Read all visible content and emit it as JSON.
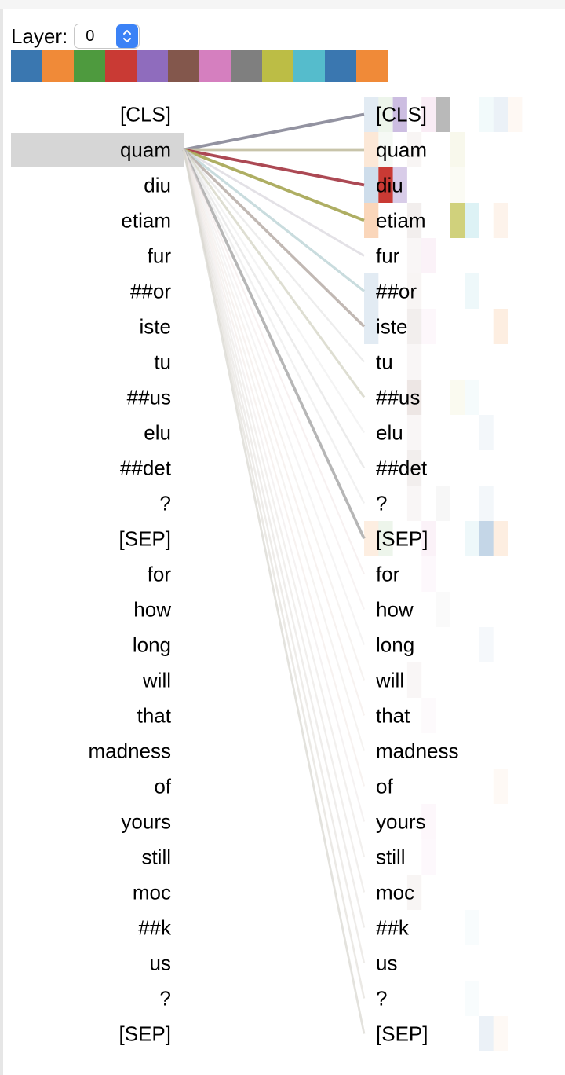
{
  "controls": {
    "layer_label": "Layer:",
    "layer_value": "0",
    "dropdown_icon": "up-down-chevron-icon"
  },
  "head_colors": [
    "#3a77b0",
    "#f08a38",
    "#4e9a3e",
    "#c93a34",
    "#8f6cbd",
    "#83574c",
    "#d57fbf",
    "#7f7f7f",
    "#bcbd45",
    "#55bccc",
    "#3a77b0",
    "#f08a38"
  ],
  "selected_token_index": 1,
  "left_tokens": [
    "[CLS]",
    "quam",
    "diu",
    "etiam",
    "fur",
    "##or",
    "iste",
    "tu",
    "##us",
    "elu",
    "##det",
    "?",
    "[SEP]",
    "for",
    "how",
    "long",
    "will",
    "that",
    "madness",
    "of",
    "yours",
    "still",
    "moc",
    "##k",
    "us",
    "?",
    "[SEP]"
  ],
  "right_tokens": [
    "[CLS]",
    "quam",
    "diu",
    "etiam",
    "fur",
    "##or",
    "iste",
    "tu",
    "##us",
    "elu",
    "##det",
    "?",
    "[SEP]",
    "for",
    "how",
    "long",
    "will",
    "that",
    "madness",
    "of",
    "yours",
    "still",
    "moc",
    "##k",
    "us",
    "?",
    "[SEP]"
  ],
  "attention_lines": [
    {
      "to": 0,
      "color": "#8f8f9e",
      "weight": 0.95
    },
    {
      "to": 1,
      "color": "#c4c0a4",
      "weight": 0.9
    },
    {
      "to": 2,
      "color": "#a9434e",
      "weight": 0.95
    },
    {
      "to": 3,
      "color": "#abab5e",
      "weight": 0.95
    },
    {
      "to": 4,
      "color": "#d8d4dc",
      "weight": 0.55
    },
    {
      "to": 5,
      "color": "#bcd3d6",
      "weight": 0.7
    },
    {
      "to": 6,
      "color": "#b8aea8",
      "weight": 0.8
    },
    {
      "to": 7,
      "color": "#e2e2e2",
      "weight": 0.4
    },
    {
      "to": 8,
      "color": "#d2d2c2",
      "weight": 0.6
    },
    {
      "to": 9,
      "color": "#ececec",
      "weight": 0.35
    },
    {
      "to": 10,
      "color": "#dfdfdf",
      "weight": 0.4
    },
    {
      "to": 11,
      "color": "#e6e6e6",
      "weight": 0.35
    },
    {
      "to": 12,
      "color": "#aeaeae",
      "weight": 0.85
    },
    {
      "to": 13,
      "color": "#f0e4e4",
      "weight": 0.25
    },
    {
      "to": 14,
      "color": "#efe7e7",
      "weight": 0.25
    },
    {
      "to": 15,
      "color": "#ebe9e9",
      "weight": 0.25
    },
    {
      "to": 16,
      "color": "#ede7e4",
      "weight": 0.25
    },
    {
      "to": 17,
      "color": "#efe6e2",
      "weight": 0.25
    },
    {
      "to": 18,
      "color": "#ebe7e3",
      "weight": 0.25
    },
    {
      "to": 19,
      "color": "#efe5e1",
      "weight": 0.25
    },
    {
      "to": 20,
      "color": "#ebe6e6",
      "weight": 0.25
    },
    {
      "to": 21,
      "color": "#e8e4e0",
      "weight": 0.3
    },
    {
      "to": 22,
      "color": "#e6e2de",
      "weight": 0.3
    },
    {
      "to": 23,
      "color": "#e4e0dc",
      "weight": 0.35
    },
    {
      "to": 24,
      "color": "#e2ded8",
      "weight": 0.35
    },
    {
      "to": 25,
      "color": "#dedbd4",
      "weight": 0.4
    },
    {
      "to": 26,
      "color": "#d6d4cc",
      "weight": 0.5
    }
  ],
  "heatmap": [
    {
      "row": 0,
      "cells": [
        {
          "c": 0,
          "color": "#3a77b0",
          "a": 0.15
        },
        {
          "c": 1,
          "color": "#4e9a3e",
          "a": 0.1
        },
        {
          "c": 2,
          "color": "#8f6cbd",
          "a": 0.45
        },
        {
          "c": 4,
          "color": "#d57fbf",
          "a": 0.15
        },
        {
          "c": 5,
          "color": "#7f7f7f",
          "a": 0.55
        },
        {
          "c": 8,
          "color": "#55bccc",
          "a": 0.08
        },
        {
          "c": 9,
          "color": "#3a77b0",
          "a": 0.1
        },
        {
          "c": 10,
          "color": "#f08a38",
          "a": 0.06
        }
      ]
    },
    {
      "row": 1,
      "cells": [
        {
          "c": 0,
          "color": "#f08a38",
          "a": 0.2
        },
        {
          "c": 1,
          "color": "#4e9a3e",
          "a": 0.06
        },
        {
          "c": 3,
          "color": "#83574c",
          "a": 0.06
        },
        {
          "c": 6,
          "color": "#bcbd45",
          "a": 0.1
        }
      ]
    },
    {
      "row": 2,
      "cells": [
        {
          "c": 0,
          "color": "#3a77b0",
          "a": 0.25
        },
        {
          "c": 1,
          "color": "#c93a34",
          "a": 1.0
        },
        {
          "c": 2,
          "color": "#8f6cbd",
          "a": 0.35
        },
        {
          "c": 6,
          "color": "#bcbd45",
          "a": 0.06
        }
      ]
    },
    {
      "row": 3,
      "cells": [
        {
          "c": 0,
          "color": "#f08a38",
          "a": 0.35
        },
        {
          "c": 3,
          "color": "#83574c",
          "a": 0.1
        },
        {
          "c": 6,
          "color": "#bcbd45",
          "a": 0.7
        },
        {
          "c": 7,
          "color": "#55bccc",
          "a": 0.2
        },
        {
          "c": 9,
          "color": "#f08a38",
          "a": 0.1
        }
      ]
    },
    {
      "row": 4,
      "cells": [
        {
          "c": 3,
          "color": "#83574c",
          "a": 0.05
        },
        {
          "c": 4,
          "color": "#d57fbf",
          "a": 0.1
        }
      ]
    },
    {
      "row": 5,
      "cells": [
        {
          "c": 0,
          "color": "#3a77b0",
          "a": 0.15
        },
        {
          "c": 3,
          "color": "#83574c",
          "a": 0.06
        },
        {
          "c": 7,
          "color": "#55bccc",
          "a": 0.1
        }
      ]
    },
    {
      "row": 6,
      "cells": [
        {
          "c": 0,
          "color": "#3a77b0",
          "a": 0.15
        },
        {
          "c": 3,
          "color": "#83574c",
          "a": 0.1
        },
        {
          "c": 4,
          "color": "#d57fbf",
          "a": 0.06
        },
        {
          "c": 9,
          "color": "#f08a38",
          "a": 0.15
        }
      ]
    },
    {
      "row": 7,
      "cells": [
        {
          "c": 3,
          "color": "#83574c",
          "a": 0.05
        }
      ]
    },
    {
      "row": 8,
      "cells": [
        {
          "c": 3,
          "color": "#83574c",
          "a": 0.15
        },
        {
          "c": 6,
          "color": "#bcbd45",
          "a": 0.08
        },
        {
          "c": 7,
          "color": "#55bccc",
          "a": 0.06
        }
      ]
    },
    {
      "row": 9,
      "cells": [
        {
          "c": 3,
          "color": "#83574c",
          "a": 0.05
        },
        {
          "c": 8,
          "color": "#3a77b0",
          "a": 0.06
        }
      ]
    },
    {
      "row": 10,
      "cells": [
        {
          "c": 3,
          "color": "#83574c",
          "a": 0.1
        }
      ]
    },
    {
      "row": 11,
      "cells": [
        {
          "c": 3,
          "color": "#83574c",
          "a": 0.05
        },
        {
          "c": 5,
          "color": "#7f7f7f",
          "a": 0.06
        },
        {
          "c": 8,
          "color": "#3a77b0",
          "a": 0.06
        }
      ]
    },
    {
      "row": 12,
      "cells": [
        {
          "c": 0,
          "color": "#f08a38",
          "a": 0.15
        },
        {
          "c": 1,
          "color": "#4e9a3e",
          "a": 0.1
        },
        {
          "c": 4,
          "color": "#d57fbf",
          "a": 0.1
        },
        {
          "c": 7,
          "color": "#55bccc",
          "a": 0.1
        },
        {
          "c": 8,
          "color": "#3a77b0",
          "a": 0.3
        },
        {
          "c": 9,
          "color": "#f08a38",
          "a": 0.15
        }
      ]
    },
    {
      "row": 13,
      "cells": [
        {
          "c": 4,
          "color": "#d57fbf",
          "a": 0.05
        }
      ]
    },
    {
      "row": 14,
      "cells": [
        {
          "c": 5,
          "color": "#7f7f7f",
          "a": 0.04
        }
      ]
    },
    {
      "row": 15,
      "cells": [
        {
          "c": 8,
          "color": "#3a77b0",
          "a": 0.05
        }
      ]
    },
    {
      "row": 16,
      "cells": [
        {
          "c": 3,
          "color": "#83574c",
          "a": 0.05
        }
      ]
    },
    {
      "row": 17,
      "cells": [
        {
          "c": 4,
          "color": "#d57fbf",
          "a": 0.04
        }
      ]
    },
    {
      "row": 19,
      "cells": [
        {
          "c": 9,
          "color": "#f08a38",
          "a": 0.05
        }
      ]
    },
    {
      "row": 20,
      "cells": [
        {
          "c": 4,
          "color": "#d57fbf",
          "a": 0.06
        }
      ]
    },
    {
      "row": 21,
      "cells": [
        {
          "c": 4,
          "color": "#d57fbf",
          "a": 0.05
        }
      ]
    },
    {
      "row": 22,
      "cells": [
        {
          "c": 3,
          "color": "#83574c",
          "a": 0.06
        }
      ]
    },
    {
      "row": 23,
      "cells": [
        {
          "c": 7,
          "color": "#55bccc",
          "a": 0.04
        }
      ]
    },
    {
      "row": 25,
      "cells": [
        {
          "c": 7,
          "color": "#55bccc",
          "a": 0.04
        }
      ]
    },
    {
      "row": 26,
      "cells": [
        {
          "c": 8,
          "color": "#3a77b0",
          "a": 0.1
        },
        {
          "c": 9,
          "color": "#f08a38",
          "a": 0.05
        }
      ]
    }
  ]
}
